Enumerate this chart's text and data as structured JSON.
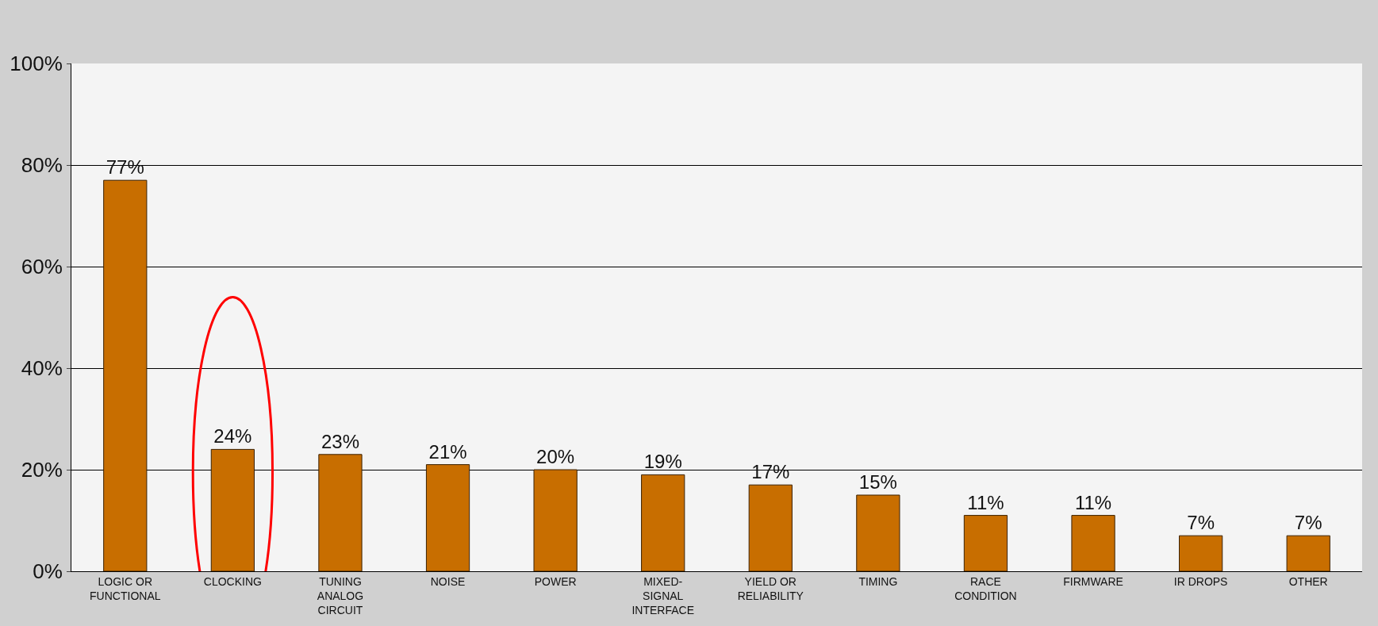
{
  "chart_data": {
    "type": "bar",
    "categories": [
      "LOGIC OR\nFUNCTIONAL",
      "CLOCKING",
      "TUNING\nANALOG\nCIRCUIT",
      "NOISE",
      "POWER",
      "MIXED-\nSIGNAL\nINTERFACE",
      "YIELD OR\nRELIABILITY",
      "TIMING",
      "RACE\nCONDITION",
      "FIRMWARE",
      "IR DROPS",
      "OTHER"
    ],
    "values": [
      77,
      24,
      23,
      21,
      20,
      19,
      17,
      15,
      11,
      11,
      7,
      7
    ],
    "value_labels": [
      "77%",
      "24%",
      "23%",
      "21%",
      "20%",
      "19%",
      "17%",
      "15%",
      "11%",
      "11%",
      "7%",
      "7%"
    ],
    "color": "#c86e00",
    "ylim": [
      0,
      100
    ],
    "yticks": [
      {
        "value": 0,
        "label": "0%"
      },
      {
        "value": 20,
        "label": "20%"
      },
      {
        "value": 40,
        "label": "40%"
      },
      {
        "value": 60,
        "label": "60%"
      },
      {
        "value": 80,
        "label": "80%"
      },
      {
        "value": 100,
        "label": "100%"
      }
    ],
    "grid": "y"
  }
}
